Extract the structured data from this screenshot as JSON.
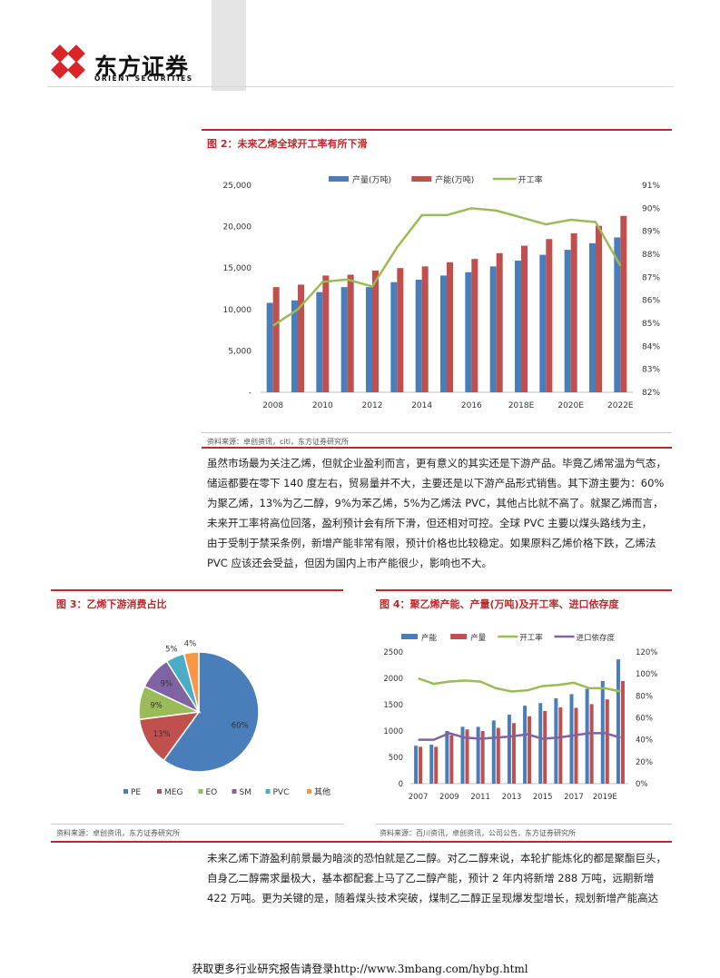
{
  "header": {
    "logo_cn": "东方证券",
    "logo_en": "ORIENT SECURITIES"
  },
  "fig2": {
    "title": "图 2：未来乙烯全球开工率有所下滑",
    "source": "资料来源：卓创资讯，citi，东方证券研究所"
  },
  "para1": [
    "虽然市场最为关注乙烯，但就企业盈利而言，更有意义的其实还是下游产品。毕竟乙烯常温为气态，",
    "储运都要在零下 140 度左右，贸易量并不大，主要还是以下游产品形式销售。其下游主要为：60%",
    "为聚乙烯，13%为乙二醇，9%为苯乙烯，5%为乙烯法 PVC，其他占比就不高了。就聚乙烯而言，",
    "未来开工率将高位回落，盈利预计会有所下滑，但还相对可控。全球 PVC 主要以煤头路线为主，",
    "由于受制于禁采条例，新增产能非常有限，预计价格也比较稳定。如果原料乙烯价格下跌，乙烯法",
    "PVC 应该还会受益，但因为国内上市产能很少，影响也不大。"
  ],
  "fig3": {
    "title": "图 3：乙烯下游消费占比",
    "source": "资料来源：卓创资讯，东方证券研究所"
  },
  "fig4": {
    "title": "图 4：聚乙烯产能、产量(万吨)及开工率、进口依存度",
    "source": "资料来源：百川资讯，卓创资讯，公司公告，东方证券研究所"
  },
  "para2": [
    "未来乙烯下游盈利前景最为暗淡的恐怕就是乙二醇。对乙二醇来说，本轮扩能炼化的都是聚酯巨头，",
    "自身乙二醇需求量极大，基本都配套上马了乙二醇产能，预计 2 年内将新增 288 万吨，远期新增",
    "422 万吨。更为关键的是，随着煤头技术突破，煤制乙二醇正呈现爆发型增长，规划新增产能高达"
  ],
  "footer": "获取更多行业研究报告请登录http://www.3mbang.com/hybg.html",
  "chart_data": [
    {
      "type": "bar",
      "categories": [
        "2008",
        "2009",
        "2010",
        "2011",
        "2012",
        "2013",
        "2014",
        "2015",
        "2016",
        "2017",
        "2018E",
        "2019E",
        "2020E",
        "2021E",
        "2022E"
      ],
      "x_tick_labels": [
        "2008",
        "2010",
        "2012",
        "2014",
        "2016",
        "2018E",
        "2020E",
        "2022E"
      ],
      "y_tick_labels": [
        "-",
        "5,000",
        "10,000",
        "15,000",
        "20,000",
        "25,000"
      ],
      "y2_tick_labels": [
        "82%",
        "83%",
        "84%",
        "85%",
        "86%",
        "87%",
        "88%",
        "89%",
        "90%",
        "91%"
      ],
      "ylim": [
        0,
        25000
      ],
      "y2lim": [
        82,
        91
      ],
      "series": [
        {
          "name": "产量(万吨)",
          "type": "bar",
          "color": "#4a7ebb",
          "values": [
            10800,
            11100,
            12100,
            12700,
            12700,
            13300,
            13600,
            14100,
            14500,
            15200,
            15900,
            16600,
            17200,
            18000,
            18700
          ]
        },
        {
          "name": "产能(万吨)",
          "type": "bar",
          "color": "#c0504d",
          "values": [
            12700,
            13000,
            14100,
            14200,
            14700,
            15000,
            15200,
            15700,
            16100,
            16800,
            17700,
            18500,
            19200,
            20100,
            21300
          ]
        },
        {
          "name": "开工率",
          "type": "line",
          "axis": "right",
          "color": "#9bbb59",
          "values": [
            84.9,
            85.6,
            86.8,
            86.9,
            86.6,
            88.3,
            89.7,
            89.7,
            90.0,
            89.9,
            89.6,
            89.3,
            89.5,
            89.4,
            87.5
          ]
        }
      ],
      "grid": false,
      "legend": "top"
    },
    {
      "type": "pie",
      "labels": [
        "PE",
        "MEG",
        "EO",
        "SM",
        "PVC",
        "其他"
      ],
      "values": [
        60,
        13,
        9,
        9,
        5,
        4
      ],
      "slice_labels": [
        "60%",
        "13%",
        "9%",
        "9%",
        "5%",
        "4%"
      ],
      "colors": [
        "#4a7ebb",
        "#c0504d",
        "#9bbb59",
        "#7f63a2",
        "#4bacc6",
        "#f79646"
      ],
      "legend": "bottom"
    },
    {
      "type": "bar",
      "categories": [
        "2007",
        "2008",
        "2009",
        "2010",
        "2011",
        "2012",
        "2013",
        "2014",
        "2015",
        "2016",
        "2017",
        "2018",
        "2019E",
        "2020E"
      ],
      "x_tick_labels": [
        "2007",
        "2009",
        "2011",
        "2013",
        "2015",
        "2017",
        "2019E"
      ],
      "y_tick_labels": [
        "0",
        "500",
        "1000",
        "1500",
        "2000",
        "2500"
      ],
      "y2_tick_labels": [
        "0%",
        "20%",
        "40%",
        "60%",
        "80%",
        "100%",
        "120%"
      ],
      "ylim": [
        0,
        2500
      ],
      "y2lim": [
        0,
        120
      ],
      "series": [
        {
          "name": "产能",
          "type": "bar",
          "color": "#4a7ebb",
          "values": [
            720,
            740,
            1000,
            1080,
            1080,
            1200,
            1310,
            1480,
            1530,
            1620,
            1700,
            1800,
            1950,
            2360
          ]
        },
        {
          "name": "产量",
          "type": "bar",
          "color": "#c0504d",
          "values": [
            700,
            700,
            920,
            1030,
            1000,
            1060,
            1150,
            1280,
            1380,
            1450,
            1440,
            1510,
            1600,
            1950
          ]
        },
        {
          "name": "开工率",
          "type": "line",
          "axis": "right",
          "color": "#9bbb59",
          "values": [
            96,
            91,
            93,
            94,
            93,
            87,
            84,
            85,
            89,
            90,
            92,
            87,
            87,
            84
          ]
        },
        {
          "name": "进口依存度",
          "type": "line",
          "axis": "right",
          "color": "#7f63a2",
          "values": [
            40,
            40,
            46,
            42,
            41,
            42,
            43,
            45,
            41,
            42,
            44,
            46,
            46,
            42
          ]
        }
      ],
      "grid": false,
      "legend": "top"
    }
  ]
}
